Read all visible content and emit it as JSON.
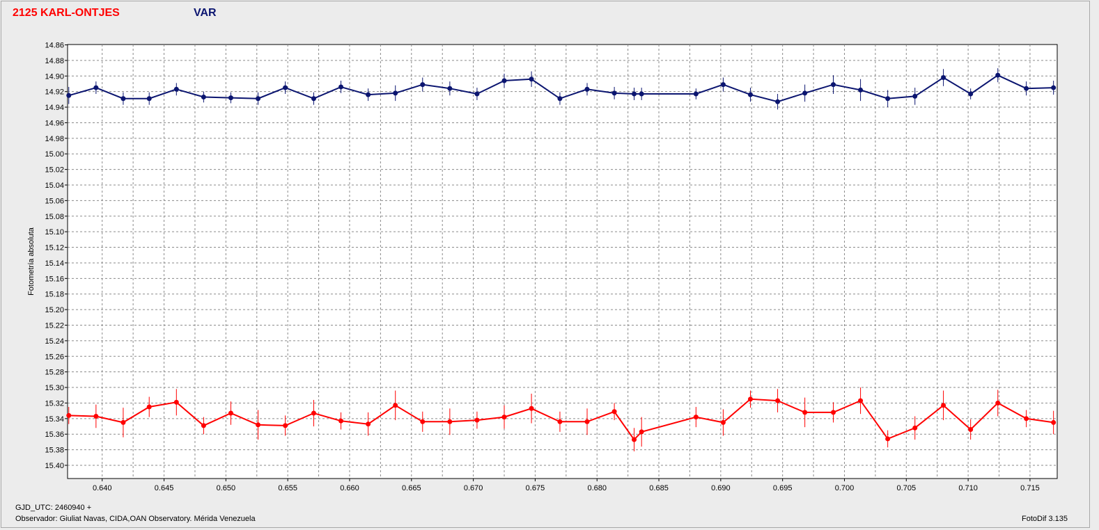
{
  "header": {
    "series1_title": "2125 KARL-ONTJES",
    "series2_title": "VAR"
  },
  "footer": {
    "gjd": "GJD_UTC: 2460940 +",
    "observer": "Observador: Giuliat Navas, CIDA,OAN Observatory. Mérida Venezuela",
    "version": "FotoDif 3.135"
  },
  "colors": {
    "red": "#ff0000",
    "blue": "#0b1570",
    "plot_bg": "#ffffff",
    "page_bg": "#ececec"
  },
  "chart_data": {
    "type": "line",
    "ylabel": "Fotometría absoluta",
    "xlabel": "",
    "xlim": [
      0.6372,
      0.7172
    ],
    "ylim": [
      15.42,
      14.86
    ],
    "y_inverted": true,
    "grid": true,
    "xticks": [
      "0.640",
      "0.645",
      "0.650",
      "0.655",
      "0.660",
      "0.665",
      "0.670",
      "0.675",
      "0.680",
      "0.685",
      "0.690",
      "0.695",
      "0.700",
      "0.705",
      "0.710",
      "0.715"
    ],
    "yticks": [
      "14.86",
      "14.88",
      "14.90",
      "14.92",
      "14.94",
      "14.96",
      "14.98",
      "15.00",
      "15.02",
      "15.04",
      "15.06",
      "15.08",
      "15.10",
      "15.12",
      "15.14",
      "15.16",
      "15.18",
      "15.20",
      "15.22",
      "15.24",
      "15.26",
      "15.28",
      "15.30",
      "15.32",
      "15.34",
      "15.36",
      "15.38",
      "15.40"
    ],
    "series": [
      {
        "name": "VAR",
        "color": "#0b1570",
        "x": [
          0.6373,
          0.6395,
          0.6417,
          0.6438,
          0.646,
          0.6482,
          0.6504,
          0.6526,
          0.6548,
          0.6571,
          0.6593,
          0.6615,
          0.6637,
          0.6659,
          0.6681,
          0.6703,
          0.6725,
          0.6747,
          0.677,
          0.6792,
          0.6814,
          0.683,
          0.6836,
          0.688,
          0.6902,
          0.6924,
          0.6946,
          0.6968,
          0.6991,
          0.7013,
          0.7035,
          0.7057,
          0.708,
          0.7102,
          0.7124,
          0.7147,
          0.7169
        ],
        "y": [
          14.925,
          14.915,
          14.929,
          14.929,
          14.917,
          14.927,
          14.928,
          14.929,
          14.915,
          14.929,
          14.914,
          14.924,
          14.922,
          14.911,
          14.916,
          14.923,
          14.906,
          14.904,
          14.929,
          14.917,
          14.922,
          14.923,
          14.923,
          14.923,
          14.911,
          14.924,
          14.933,
          14.922,
          14.911,
          14.918,
          14.929,
          14.926,
          14.902,
          14.923,
          14.899,
          14.916,
          14.915
        ],
        "err": [
          0.011,
          0.008,
          0.008,
          0.008,
          0.008,
          0.007,
          0.007,
          0.008,
          0.008,
          0.008,
          0.008,
          0.008,
          0.01,
          0.009,
          0.009,
          0.008,
          0.009,
          0.01,
          0.008,
          0.008,
          0.008,
          0.008,
          0.008,
          0.007,
          0.009,
          0.009,
          0.01,
          0.011,
          0.012,
          0.014,
          0.011,
          0.011,
          0.011,
          0.007,
          0.009,
          0.009,
          0.009
        ]
      },
      {
        "name": "2125 KARL-ONTJES",
        "color": "#ff0000",
        "x": [
          0.6373,
          0.6395,
          0.6417,
          0.6438,
          0.646,
          0.6482,
          0.6504,
          0.6526,
          0.6548,
          0.6571,
          0.6593,
          0.6615,
          0.6637,
          0.6659,
          0.6681,
          0.6703,
          0.6725,
          0.6747,
          0.677,
          0.6792,
          0.6814,
          0.683,
          0.6836,
          0.688,
          0.6902,
          0.6924,
          0.6946,
          0.6968,
          0.6991,
          0.7013,
          0.7035,
          0.7057,
          0.708,
          0.7102,
          0.7124,
          0.7147,
          0.7169
        ],
        "y": [
          15.336,
          15.337,
          15.345,
          15.325,
          15.319,
          15.349,
          15.333,
          15.348,
          15.349,
          15.333,
          15.343,
          15.347,
          15.323,
          15.344,
          15.344,
          15.342,
          15.338,
          15.327,
          15.344,
          15.344,
          15.331,
          15.367,
          15.357,
          15.338,
          15.345,
          15.315,
          15.317,
          15.332,
          15.332,
          15.317,
          15.366,
          15.352,
          15.323,
          15.354,
          15.32,
          15.34,
          15.345
        ]
      }
    ]
  }
}
